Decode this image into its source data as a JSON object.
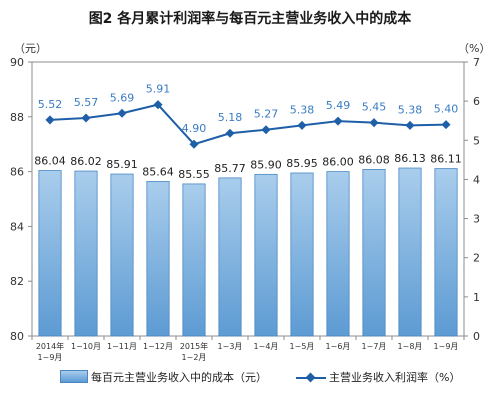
{
  "title": "图2  各月累计利润率与每百元主营业务收入中的成本",
  "left_axis_unit": "（元）",
  "right_axis_unit": "（%）",
  "legend": {
    "bar_label": "每百元主营业务收入中的成本（元）",
    "line_label": "主营业务收入利润率（%）"
  },
  "colors": {
    "bar": "#5d9bd3",
    "line": "#1f5fa8",
    "bar_label": "#222222",
    "line_label": "#3a7cc4"
  },
  "chart_data": {
    "type": "bar",
    "categories": [
      [
        "2014年",
        "1~9月"
      ],
      [
        "1~10月"
      ],
      [
        "1~11月"
      ],
      [
        "1~12月"
      ],
      [
        "2015年",
        "1~2月"
      ],
      [
        "1~3月"
      ],
      [
        "1~4月"
      ],
      [
        "1~5月"
      ],
      [
        "1~6月"
      ],
      [
        "1~7月"
      ],
      [
        "1~8月"
      ],
      [
        "1~9月"
      ]
    ],
    "series": [
      {
        "name": "每百元主营业务收入中的成本（元）",
        "type": "bar",
        "axis": "left",
        "values": [
          86.04,
          86.02,
          85.91,
          85.64,
          85.55,
          85.77,
          85.9,
          85.95,
          86.0,
          86.08,
          86.13,
          86.11
        ],
        "labels": [
          "86.04",
          "86.02",
          "85.91",
          "85.64",
          "85.55",
          "85.77",
          "85.90",
          "85.95",
          "86.00",
          "86.08",
          "86.13",
          "86.11"
        ]
      },
      {
        "name": "主营业务收入利润率（%）",
        "type": "line",
        "axis": "right",
        "values": [
          5.52,
          5.57,
          5.69,
          5.91,
          4.9,
          5.18,
          5.27,
          5.38,
          5.49,
          5.45,
          5.38,
          5.4
        ],
        "labels": [
          "5.52",
          "5.57",
          "5.69",
          "5.91",
          "4.90",
          "5.18",
          "5.27",
          "5.38",
          "5.49",
          "5.45",
          "5.38",
          "5.40"
        ]
      }
    ],
    "left_axis": {
      "min": 80,
      "max": 90,
      "ticks": [
        "80",
        "82",
        "84",
        "86",
        "88",
        "90"
      ]
    },
    "right_axis": {
      "min": 0,
      "max": 7,
      "ticks": [
        "0",
        "1",
        "2",
        "3",
        "4",
        "5",
        "6",
        "7"
      ]
    },
    "grid": false,
    "legend_position": "bottom"
  }
}
